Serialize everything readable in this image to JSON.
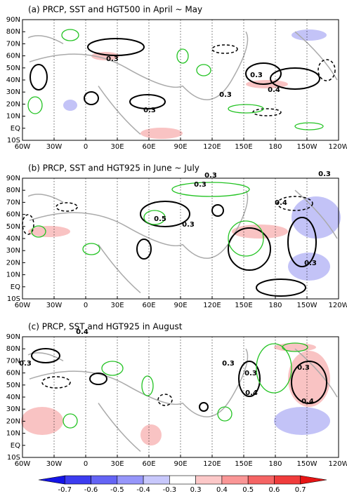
{
  "panels": [
    {
      "title": "(a) PRCP, SST and HGT500 in April ~ May",
      "contour_labels": [
        "0.3",
        "0.3",
        "0.3",
        "0.3",
        "0.4"
      ]
    },
    {
      "title": "(b) PRCP, SST and HGT925 in June ~ July",
      "contour_labels": [
        "0.3",
        "0.5",
        "0.3",
        "0.3",
        "0.4",
        "0.3",
        "0.3"
      ]
    },
    {
      "title": "(c) PRCP, SST and HGT925 in August",
      "contour_labels": [
        "0.4",
        "0.3",
        "0.3",
        "0.3",
        "0.4",
        "0.3",
        "0.4"
      ]
    }
  ],
  "lon_labels": [
    "60W",
    "30W",
    "0",
    "30E",
    "60E",
    "90E",
    "120E",
    "150E",
    "180",
    "150W",
    "120W"
  ],
  "lat_labels": [
    "10S",
    "EQ",
    "10N",
    "20N",
    "30N",
    "40N",
    "50N",
    "60N",
    "70N",
    "80N",
    "90N"
  ],
  "colorbar": {
    "labels": [
      "-0.7",
      "-0.6",
      "-0.5",
      "-0.4",
      "-0.3",
      "0.3",
      "0.4",
      "0.5",
      "0.6",
      "0.7"
    ],
    "colors": [
      "#1414e6",
      "#3c3cf0",
      "#6464f5",
      "#9696fa",
      "#c8c8fc",
      "#ffffff",
      "#fcc8c8",
      "#fa9696",
      "#f56464",
      "#f03c3c",
      "#e61414"
    ]
  }
}
